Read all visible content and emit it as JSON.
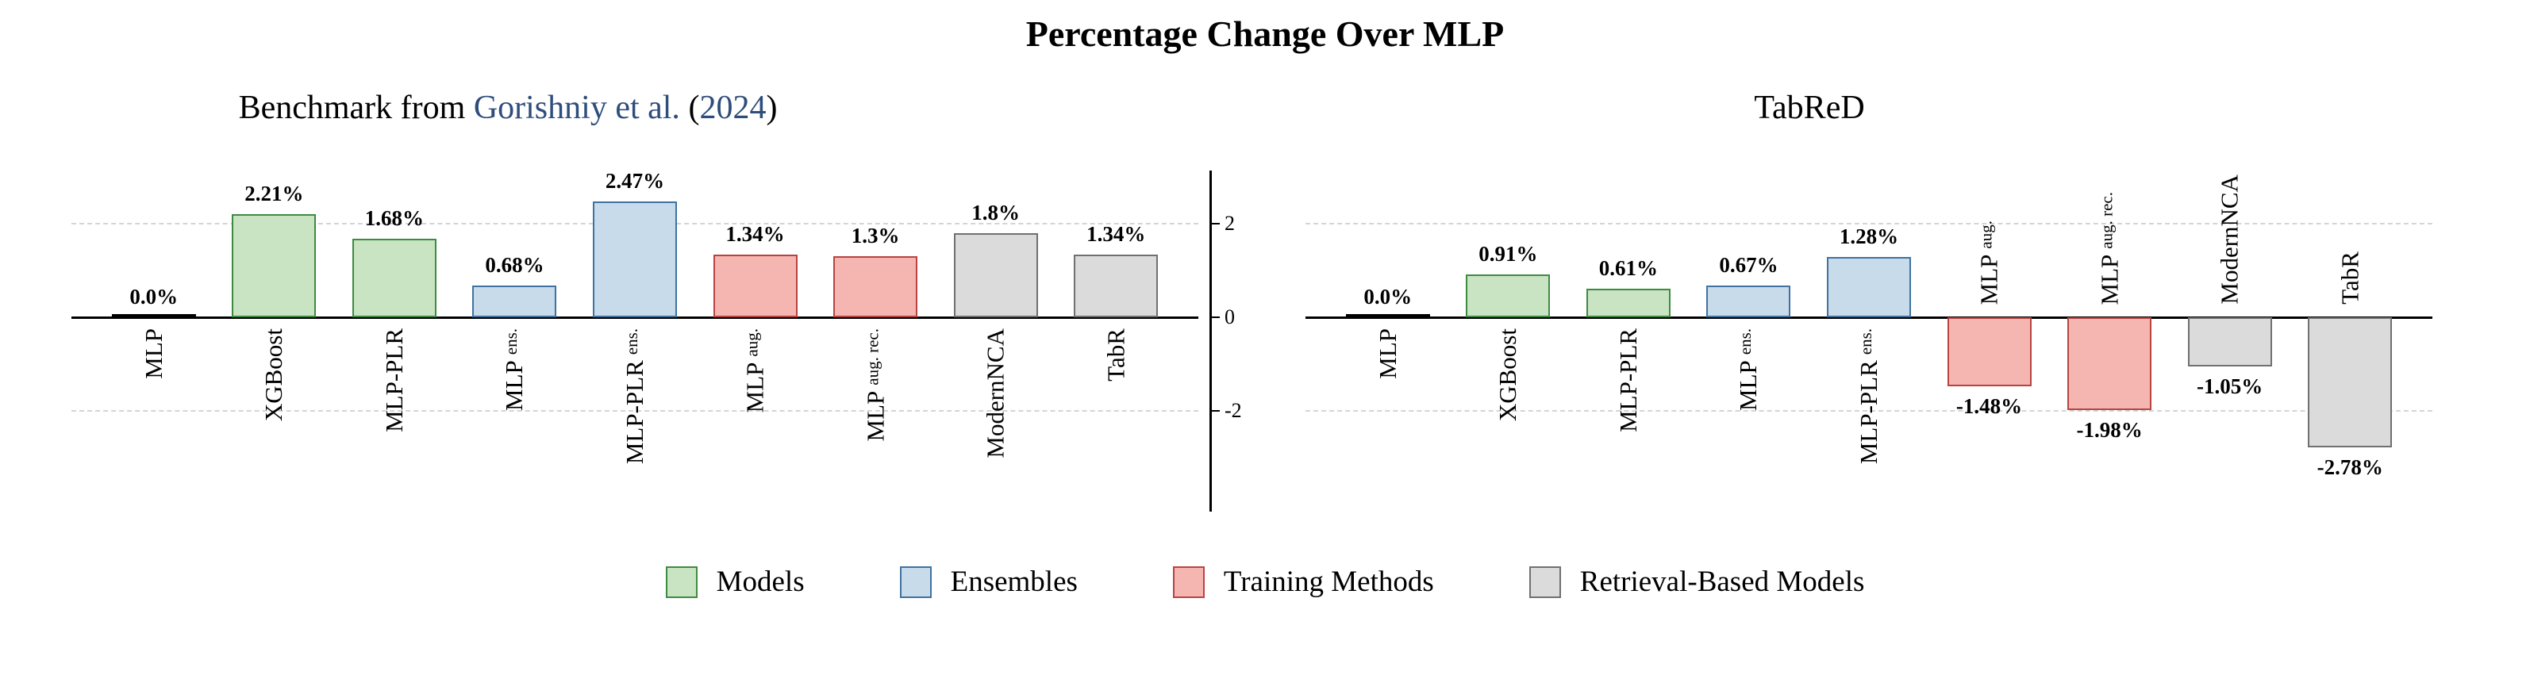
{
  "title": "Percentage Change Over MLP",
  "subtitle_left": {
    "parts": [
      {
        "text": "Benchmark from ",
        "link": false
      },
      {
        "text": "Gorishniy et al.",
        "link": true
      },
      {
        "text": " (",
        "link": false
      },
      {
        "text": "2024",
        "link": true
      },
      {
        "text": ")",
        "link": false
      }
    ]
  },
  "colors": {
    "baseline": {
      "fill": "#000000",
      "edge": "#000000"
    },
    "models": {
      "fill": "#c8e4c3",
      "edge": "#3d8b40"
    },
    "ensembles": {
      "fill": "#c7dbeb",
      "edge": "#3f72a0"
    },
    "training": {
      "fill": "#f5b5b1",
      "edge": "#b84341"
    },
    "retrieval": {
      "fill": "#dbdbdb",
      "edge": "#707070"
    },
    "link_text": "#2e4d7b",
    "grid": "#d4d4d4",
    "axis": "#000000"
  },
  "legend": {
    "items": [
      {
        "label": "Models",
        "group": "models"
      },
      {
        "label": "Ensembles",
        "group": "ensembles"
      },
      {
        "label": "Training Methods",
        "group": "training"
      },
      {
        "label": "Retrieval-Based Models",
        "group": "retrieval"
      }
    ]
  },
  "chart_data": [
    {
      "type": "bar",
      "title": "Benchmark from Gorishniy et al. (2024)",
      "ylabel": "",
      "ylim": [
        -3.3,
        2.9
      ],
      "yticks": [
        2,
        0,
        -2
      ],
      "grid_dashed_at": [
        2,
        -2
      ],
      "categories": [
        {
          "main": "MLP",
          "suffix": ""
        },
        {
          "main": "XGBoost",
          "suffix": ""
        },
        {
          "main": "MLP-PLR",
          "suffix": ""
        },
        {
          "main": "MLP",
          "suffix": "ens."
        },
        {
          "main": "MLP-PLR",
          "suffix": "ens."
        },
        {
          "main": "MLP",
          "suffix": "aug."
        },
        {
          "main": "MLP",
          "suffix": "aug. rec."
        },
        {
          "main": "ModernNCA",
          "suffix": ""
        },
        {
          "main": "TabR",
          "suffix": ""
        }
      ],
      "groups": [
        "baseline",
        "models",
        "models",
        "ensembles",
        "ensembles",
        "training",
        "training",
        "retrieval",
        "retrieval"
      ],
      "values": [
        0.0,
        2.21,
        1.68,
        0.68,
        2.47,
        1.34,
        1.3,
        1.8,
        1.34
      ],
      "value_labels": [
        "0.0%",
        "2.21%",
        "1.68%",
        "0.68%",
        "2.47%",
        "1.34%",
        "1.3%",
        "1.8%",
        "1.34%"
      ]
    },
    {
      "type": "bar",
      "title": "TabReD",
      "ylabel": "",
      "ylim": [
        -3.3,
        2.9
      ],
      "yticks": [
        2,
        0,
        -2
      ],
      "grid_dashed_at": [
        2,
        -2
      ],
      "categories": [
        {
          "main": "MLP",
          "suffix": ""
        },
        {
          "main": "XGBoost",
          "suffix": ""
        },
        {
          "main": "MLP-PLR",
          "suffix": ""
        },
        {
          "main": "MLP",
          "suffix": "ens."
        },
        {
          "main": "MLP-PLR",
          "suffix": "ens."
        },
        {
          "main": "MLP",
          "suffix": "aug."
        },
        {
          "main": "MLP",
          "suffix": "aug. rec."
        },
        {
          "main": "ModernNCA",
          "suffix": ""
        },
        {
          "main": "TabR",
          "suffix": ""
        }
      ],
      "groups": [
        "baseline",
        "models",
        "models",
        "ensembles",
        "ensembles",
        "training",
        "training",
        "retrieval",
        "retrieval"
      ],
      "values": [
        0.0,
        0.91,
        0.61,
        0.67,
        1.28,
        -1.48,
        -1.98,
        -1.05,
        -2.78
      ],
      "value_labels": [
        "0.0%",
        "0.91%",
        "0.61%",
        "0.67%",
        "1.28%",
        "-1.48%",
        "-1.98%",
        "-1.05%",
        "-2.78%"
      ]
    }
  ]
}
